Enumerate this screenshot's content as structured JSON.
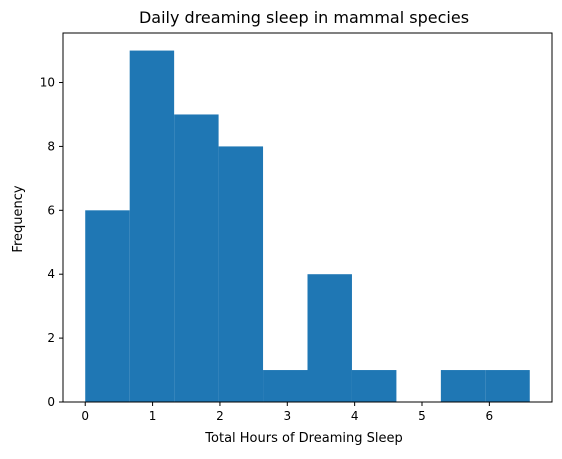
{
  "chart_data": {
    "type": "histogram",
    "title": "Daily dreaming sleep in mammal species",
    "xlabel": "Total Hours of Dreaming Sleep",
    "ylabel": "Frequency",
    "xlim": [
      -0.33,
      6.93
    ],
    "ylim": [
      0,
      11.55
    ],
    "xticks": [
      0,
      1,
      2,
      3,
      4,
      5,
      6
    ],
    "yticks": [
      0,
      2,
      4,
      6,
      8,
      10
    ],
    "bin_edges": [
      0.0,
      0.66,
      1.32,
      1.98,
      2.64,
      3.3,
      3.96,
      4.62,
      5.28,
      5.94,
      6.6
    ],
    "counts": [
      6,
      11,
      9,
      8,
      1,
      4,
      1,
      0,
      1,
      1
    ],
    "bar_color": "#1f77b4",
    "grid": false,
    "legend": "none"
  }
}
